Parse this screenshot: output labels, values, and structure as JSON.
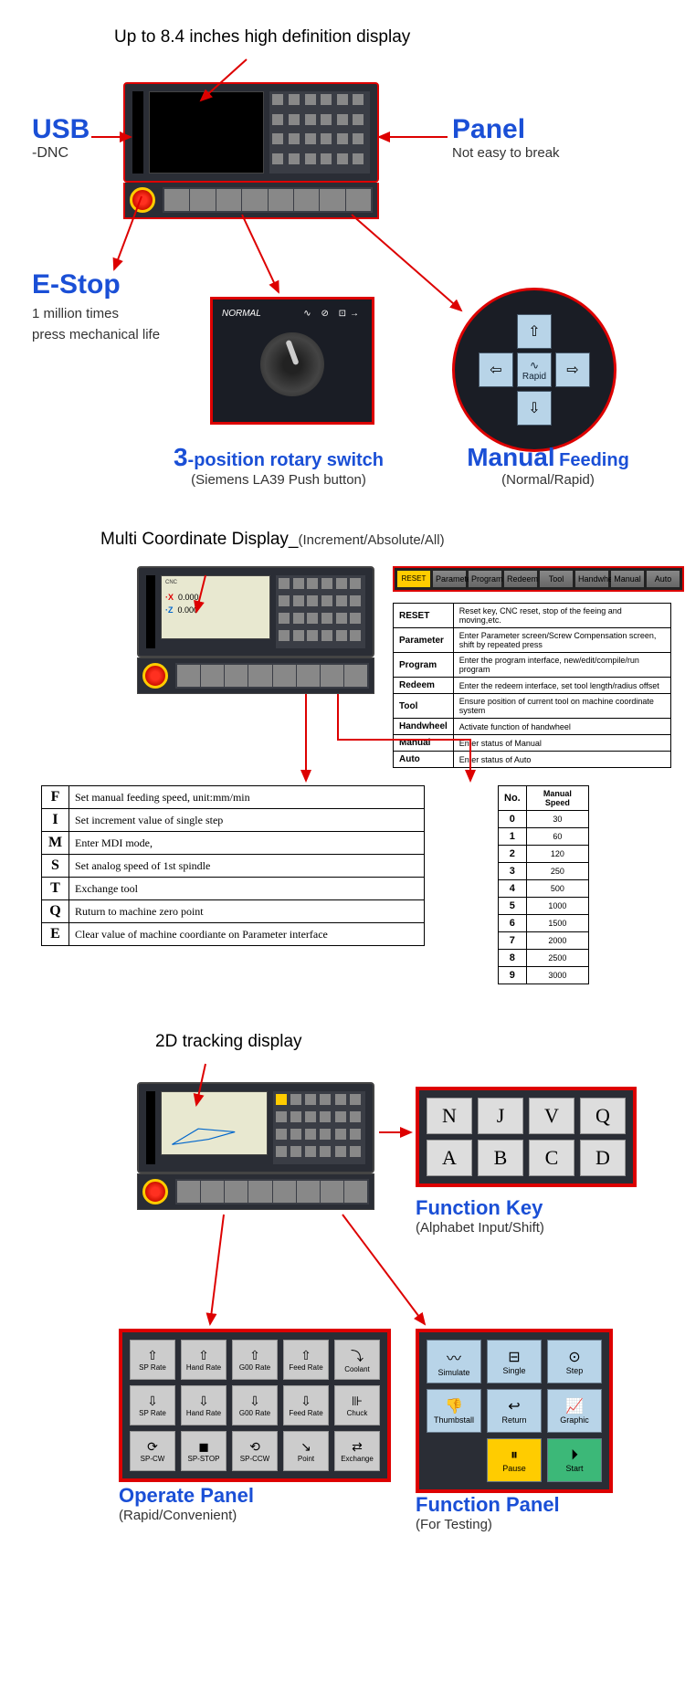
{
  "section1": {
    "display_callout": "Up to 8.4 inches high definition display",
    "usb": {
      "title": "USB",
      "sub": "-DNC"
    },
    "panel": {
      "title": "Panel",
      "sub": "Not easy to break"
    },
    "estop": {
      "title": "E-Stop",
      "sub1": "1 million times",
      "sub2": "press mechanical life"
    },
    "rotary": {
      "title_num": "3",
      "title_rest": "-position rotary switch",
      "sub": "(Siemens LA39 Push button)",
      "label": "NORMAL",
      "icons": "∿ ⊘ ⊡→"
    },
    "manual": {
      "title1": "Manual",
      "title2": "Feeding",
      "sub": "(Normal/Rapid)",
      "center": "Rapid"
    }
  },
  "section2": {
    "title_main": "Multi Coordinate Display_",
    "title_sub": "(Increment/Absolute/All)",
    "coord": {
      "x": "·X",
      "xv": "0.000",
      "z": "·Z",
      "zv": "0.000"
    },
    "strip": [
      "RESET",
      "Parameter",
      "Program",
      "Redeem",
      "Tool",
      "Handwheel",
      "Manual",
      "Auto"
    ],
    "desc_table": {
      "rows": [
        [
          "RESET",
          "Reset key, CNC reset, stop of the feeing and moving,etc."
        ],
        [
          "Parameter",
          "Enter Parameter screen/Screw Compensation screen, shift by repeated press"
        ],
        [
          "Program",
          "Enter the program interface, new/edit/compile/run program"
        ],
        [
          "Redeem",
          "Enter the redeem interface, set tool length/radius offset"
        ],
        [
          "Tool",
          "Ensure position of current tool on machine coordinate system"
        ],
        [
          "Handwheel",
          "Activate function of handwheel"
        ],
        [
          "Manual",
          "Enter status of Manual"
        ],
        [
          "Auto",
          "Enter status of Auto"
        ]
      ]
    },
    "letter_table": {
      "rows": [
        [
          "F",
          "Set manual feeding speed, unit:mm/min"
        ],
        [
          "I",
          "Set increment value of single step"
        ],
        [
          "M",
          "Enter MDI mode,"
        ],
        [
          "S",
          "Set analog speed of 1st spindle"
        ],
        [
          "T",
          "Exchange tool"
        ],
        [
          "Q",
          "Ruturn to machine zero point"
        ],
        [
          "E",
          "Clear value of machine coordiante on Parameter interface"
        ]
      ]
    },
    "speed_table": {
      "h1": "No.",
      "h2": "Manual Speed",
      "rows": [
        [
          "0",
          "30"
        ],
        [
          "1",
          "60"
        ],
        [
          "2",
          "120"
        ],
        [
          "3",
          "250"
        ],
        [
          "4",
          "500"
        ],
        [
          "5",
          "1000"
        ],
        [
          "6",
          "1500"
        ],
        [
          "7",
          "2000"
        ],
        [
          "8",
          "2500"
        ],
        [
          "9",
          "3000"
        ]
      ]
    }
  },
  "section3": {
    "title": "2D tracking display",
    "fn_key": {
      "title": "Function Key",
      "sub": "(Alphabet Input/Shift)",
      "keys": [
        "N",
        "J",
        "V",
        "Q",
        "A",
        "B",
        "C",
        "D"
      ]
    },
    "op_panel": {
      "title": "Operate Panel",
      "sub": "(Rapid/Convenient)",
      "keys": [
        {
          "ico": "⇧",
          "lbl": "SP Rate"
        },
        {
          "ico": "⇧",
          "lbl": "Hand Rate"
        },
        {
          "ico": "⇧",
          "lbl": "G00 Rate"
        },
        {
          "ico": "⇧",
          "lbl": "Feed Rate"
        },
        {
          "ico": "⤵",
          "lbl": "Coolant"
        },
        {
          "ico": "⇩",
          "lbl": "SP Rate"
        },
        {
          "ico": "⇩",
          "lbl": "Hand Rate"
        },
        {
          "ico": "⇩",
          "lbl": "G00 Rate"
        },
        {
          "ico": "⇩",
          "lbl": "Feed Rate"
        },
        {
          "ico": "⊪",
          "lbl": "Chuck"
        },
        {
          "ico": "⟳",
          "lbl": "SP-CW"
        },
        {
          "ico": "◼",
          "lbl": "SP-STOP"
        },
        {
          "ico": "⟲",
          "lbl": "SP-CCW"
        },
        {
          "ico": "↘",
          "lbl": "Point"
        },
        {
          "ico": "⇄",
          "lbl": "Exchange"
        }
      ]
    },
    "fn_panel": {
      "title": "Function Panel",
      "sub": "(For Testing)",
      "keys": [
        {
          "ico": "〰",
          "lbl": "Simulate",
          "cls": ""
        },
        {
          "ico": "⊟",
          "lbl": "Single",
          "cls": ""
        },
        {
          "ico": "⊙",
          "lbl": "Step",
          "cls": ""
        },
        {
          "ico": "👎",
          "lbl": "Thumbstall",
          "cls": ""
        },
        {
          "ico": "↩",
          "lbl": "Return",
          "cls": ""
        },
        {
          "ico": "📈",
          "lbl": "Graphic",
          "cls": ""
        },
        {
          "ico": "",
          "lbl": "",
          "cls": "blank"
        },
        {
          "ico": "⏸",
          "lbl": "Pause",
          "cls": "pause"
        },
        {
          "ico": "⏵",
          "lbl": "Start",
          "cls": "start"
        }
      ]
    }
  },
  "colors": {
    "blue": "#1a4fd6",
    "red": "#d00",
    "accent_yellow": "#ffcc00",
    "accent_green": "#3cb878"
  }
}
